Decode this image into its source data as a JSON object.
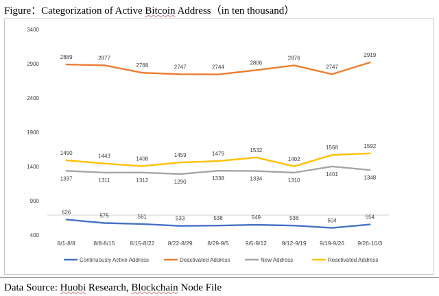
{
  "caption": {
    "prefix": "Figure：",
    "title_before": "Categorization of Active ",
    "title_wavy": "Bitcoin",
    "title_after": " Address（in ten thousand）"
  },
  "source": {
    "prefix": "Data Source: ",
    "org_wavy": "Huobi",
    "middle": " Research, ",
    "chain_wavy": "Blockchain",
    "suffix": " Node File"
  },
  "chart_data": {
    "type": "line",
    "title": "Categorization of Active Bitcoin Address（in ten thousand）",
    "xlabel": "",
    "ylabel": "",
    "categories": [
      "8/1-8/8",
      "8/8-8/15",
      "8/15-8/22",
      "8/22-8/29",
      "8/29-9/5",
      "9/5-9/12",
      "9/12-9/19",
      "9/19-9/26",
      "9/26-10/3"
    ],
    "ylim": [
      400,
      3400
    ],
    "yticks": [
      400,
      900,
      1400,
      1900,
      2400,
      2900,
      3400
    ],
    "grid": false,
    "legend_position": "bottom",
    "series": [
      {
        "name": "Continuously Active Address",
        "color": "#4472c4",
        "values": [
          626,
          575,
          561,
          533,
          538,
          549,
          538,
          504,
          554
        ]
      },
      {
        "name": "Deactivated Address",
        "color": "#ed7d31",
        "values": [
          2889,
          2877,
          2768,
          2747,
          2744,
          2806,
          2876,
          2747,
          2919
        ]
      },
      {
        "name": "New Address",
        "color": "#a5a5a5",
        "values": [
          1337,
          1311,
          1312,
          1290,
          1338,
          1334,
          1310,
          1401,
          1348
        ]
      },
      {
        "name": "Reactivated Address",
        "color": "#ffc000",
        "values": [
          1490,
          1443,
          1406,
          1459,
          1479,
          1532,
          1402,
          1568,
          1592
        ]
      }
    ]
  }
}
